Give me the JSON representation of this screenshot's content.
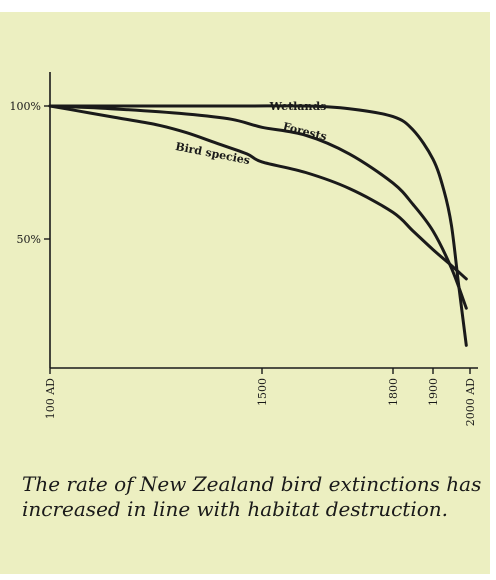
{
  "chart_data": {
    "type": "line",
    "title": "",
    "xlabel": "",
    "ylabel": "",
    "x_ticks": [
      "100 AD",
      "1500",
      "1800",
      "1900",
      "2000 AD"
    ],
    "y_ticks": [
      "100%",
      "50%"
    ],
    "xlim": [
      100,
      2000
    ],
    "ylim": [
      0,
      100
    ],
    "grid": false,
    "legend": "none",
    "series": [
      {
        "name": "Wetlands",
        "x": [
          100,
          500,
          1000,
          1400,
          1600,
          1700,
          1800,
          1850,
          1900,
          1930,
          1950,
          1970,
          1990
        ],
        "y": [
          100,
          100,
          100,
          100,
          100,
          99,
          96,
          91,
          80,
          68,
          55,
          32,
          10
        ]
      },
      {
        "name": "Forests",
        "x": [
          100,
          500,
          1000,
          1300,
          1500,
          1600,
          1700,
          1800,
          1850,
          1900,
          1950,
          1990
        ],
        "y": [
          100,
          99,
          97,
          95,
          92,
          89,
          82,
          71,
          63,
          53,
          39,
          24
        ]
      },
      {
        "name": "Bird species",
        "x": [
          100,
          300,
          500,
          800,
          1000,
          1200,
          1400,
          1500,
          1600,
          1700,
          1800,
          1850,
          1900,
          1950,
          1990
        ],
        "y": [
          100,
          98,
          96,
          93,
          90,
          86,
          82,
          79,
          75,
          69,
          60,
          53,
          46,
          40,
          35
        ]
      }
    ],
    "colors": {
      "line": "#1a1a1a",
      "background": "#ecefc1"
    }
  },
  "caption": {
    "line1": "The rate of New Zealand bird extinctions has",
    "line2": "increased in line with habitat destruction."
  }
}
